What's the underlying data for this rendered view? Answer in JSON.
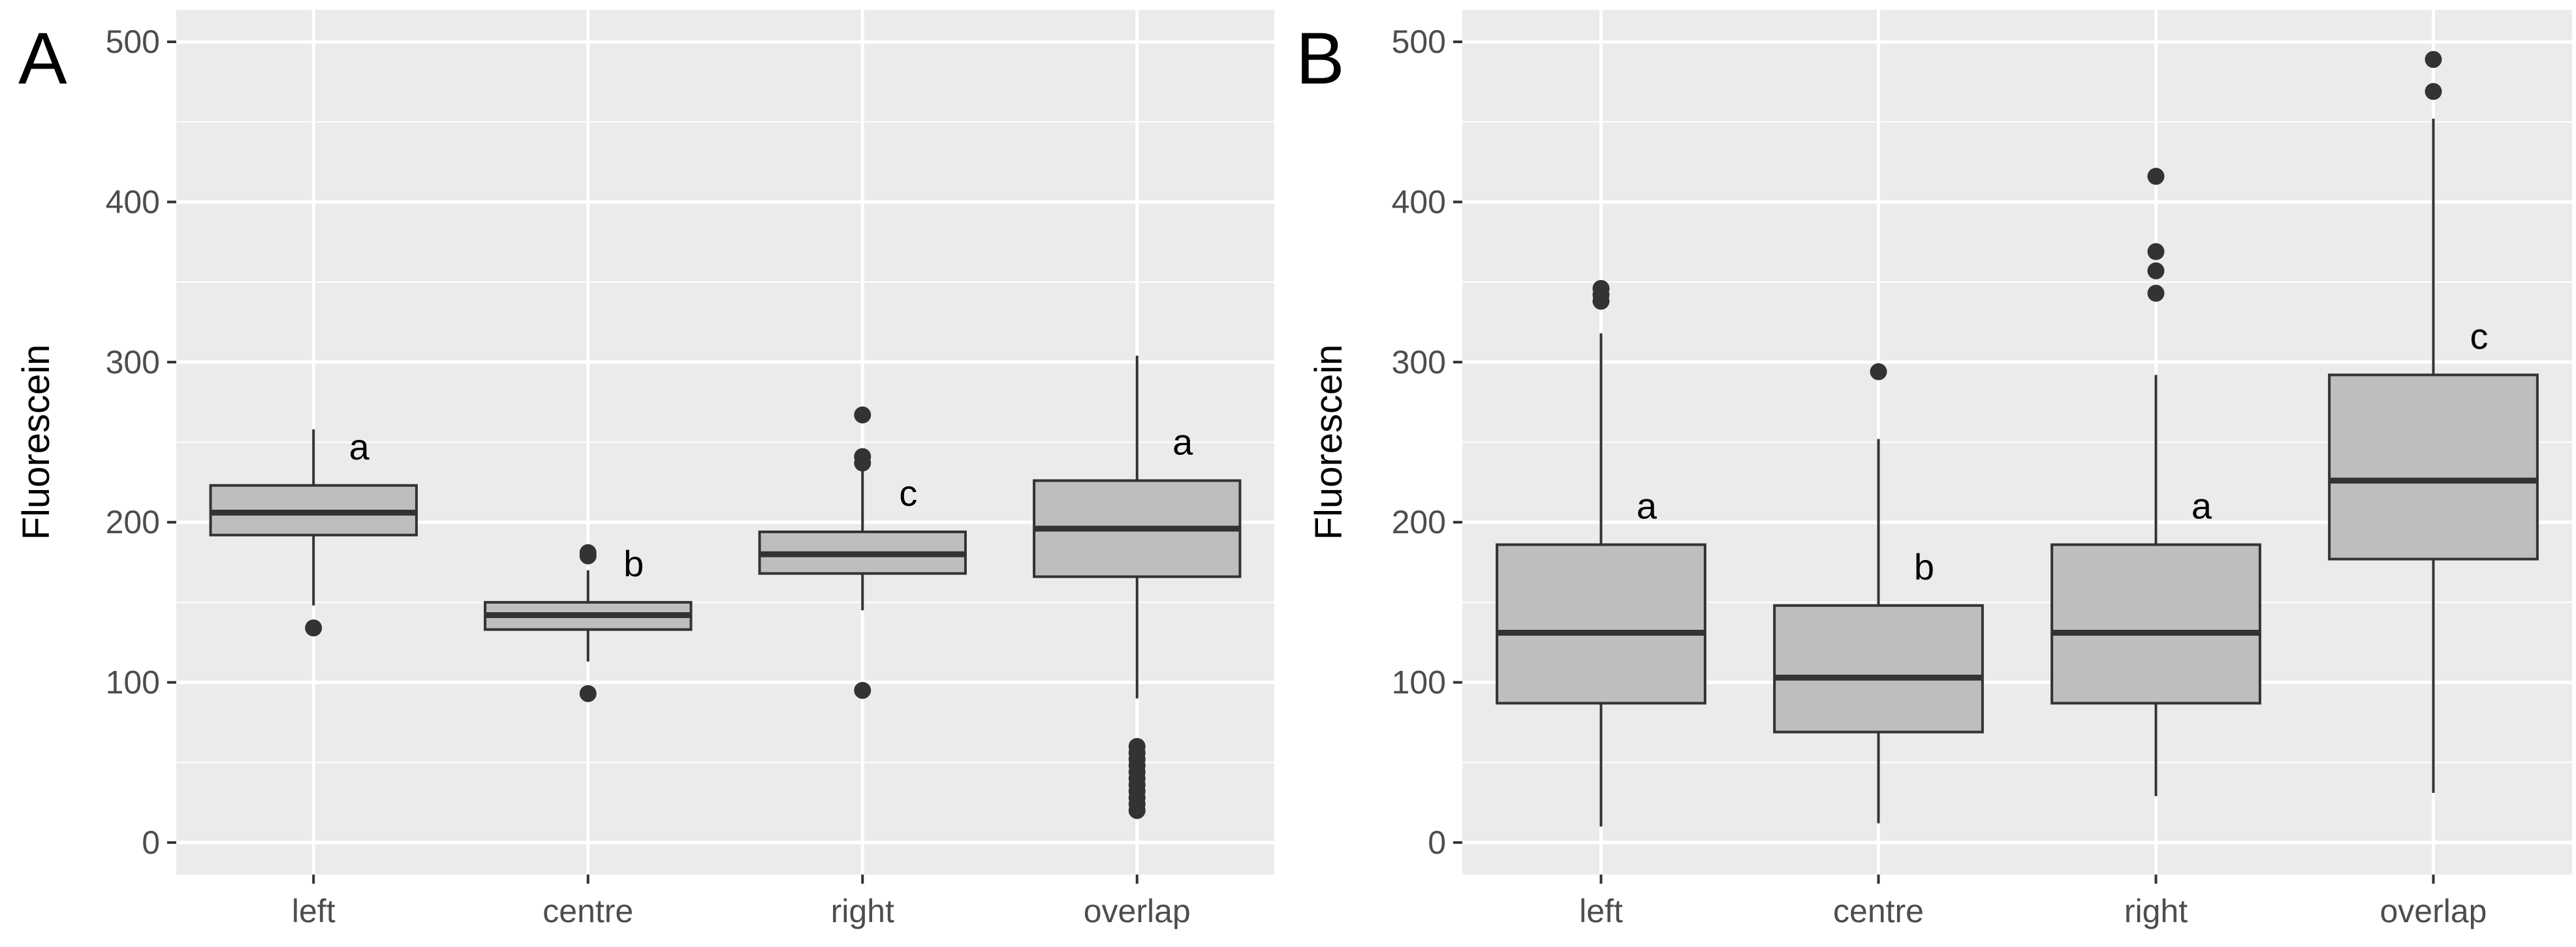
{
  "chart_data": [
    {
      "panel": "A",
      "type": "boxplot",
      "ylabel": "Fluorescein",
      "xlabel": "",
      "ylim": [
        -20,
        520
      ],
      "yticks": [
        0,
        100,
        200,
        300,
        400,
        500
      ],
      "grid": true,
      "categories": [
        "left",
        "centre",
        "right",
        "overlap"
      ],
      "boxes": [
        {
          "category": "left",
          "whisker_low": 148,
          "q1": 192,
          "median": 206,
          "q3": 223,
          "whisker_high": 258,
          "outliers": [
            134
          ],
          "sig_label": "a"
        },
        {
          "category": "centre",
          "whisker_low": 113,
          "q1": 133,
          "median": 142,
          "q3": 150,
          "whisker_high": 170,
          "outliers": [
            93,
            179,
            181
          ],
          "sig_label": "b"
        },
        {
          "category": "right",
          "whisker_low": 145,
          "q1": 168,
          "median": 180,
          "q3": 194,
          "whisker_high": 232,
          "outliers": [
            95,
            237,
            241,
            267
          ],
          "sig_label": "c"
        },
        {
          "category": "overlap",
          "whisker_low": 90,
          "q1": 166,
          "median": 196,
          "q3": 226,
          "whisker_high": 304,
          "outliers": [
            20,
            24,
            28,
            32,
            36,
            40,
            44,
            48,
            52,
            56,
            60
          ],
          "sig_label": "a"
        }
      ]
    },
    {
      "panel": "B",
      "type": "boxplot",
      "ylabel": "Fluorescein",
      "xlabel": "",
      "ylim": [
        -20,
        520
      ],
      "yticks": [
        0,
        100,
        200,
        300,
        400,
        500
      ],
      "grid": true,
      "categories": [
        "left",
        "centre",
        "right",
        "overlap"
      ],
      "boxes": [
        {
          "category": "left",
          "whisker_low": 10,
          "q1": 87,
          "median": 131,
          "q3": 186,
          "whisker_high": 318,
          "outliers": [
            338,
            342,
            346
          ],
          "sig_label": "a"
        },
        {
          "category": "centre",
          "whisker_low": 12,
          "q1": 69,
          "median": 103,
          "q3": 148,
          "whisker_high": 252,
          "outliers": [
            294
          ],
          "sig_label": "b"
        },
        {
          "category": "right",
          "whisker_low": 29,
          "q1": 87,
          "median": 131,
          "q3": 186,
          "whisker_high": 292,
          "outliers": [
            343,
            357,
            369,
            416
          ],
          "sig_label": "a"
        },
        {
          "category": "overlap",
          "whisker_low": 31,
          "q1": 177,
          "median": 226,
          "q3": 292,
          "whisker_high": 452,
          "outliers": [
            469,
            489
          ],
          "sig_label": "c"
        }
      ]
    }
  ],
  "style": {
    "panel_background": "#ebebeb",
    "grid_color": "#ffffff",
    "box_fill": "#bebebe",
    "line_color": "#333333",
    "tick_label_color": "#4d4d4d",
    "text_color": "#000000"
  }
}
